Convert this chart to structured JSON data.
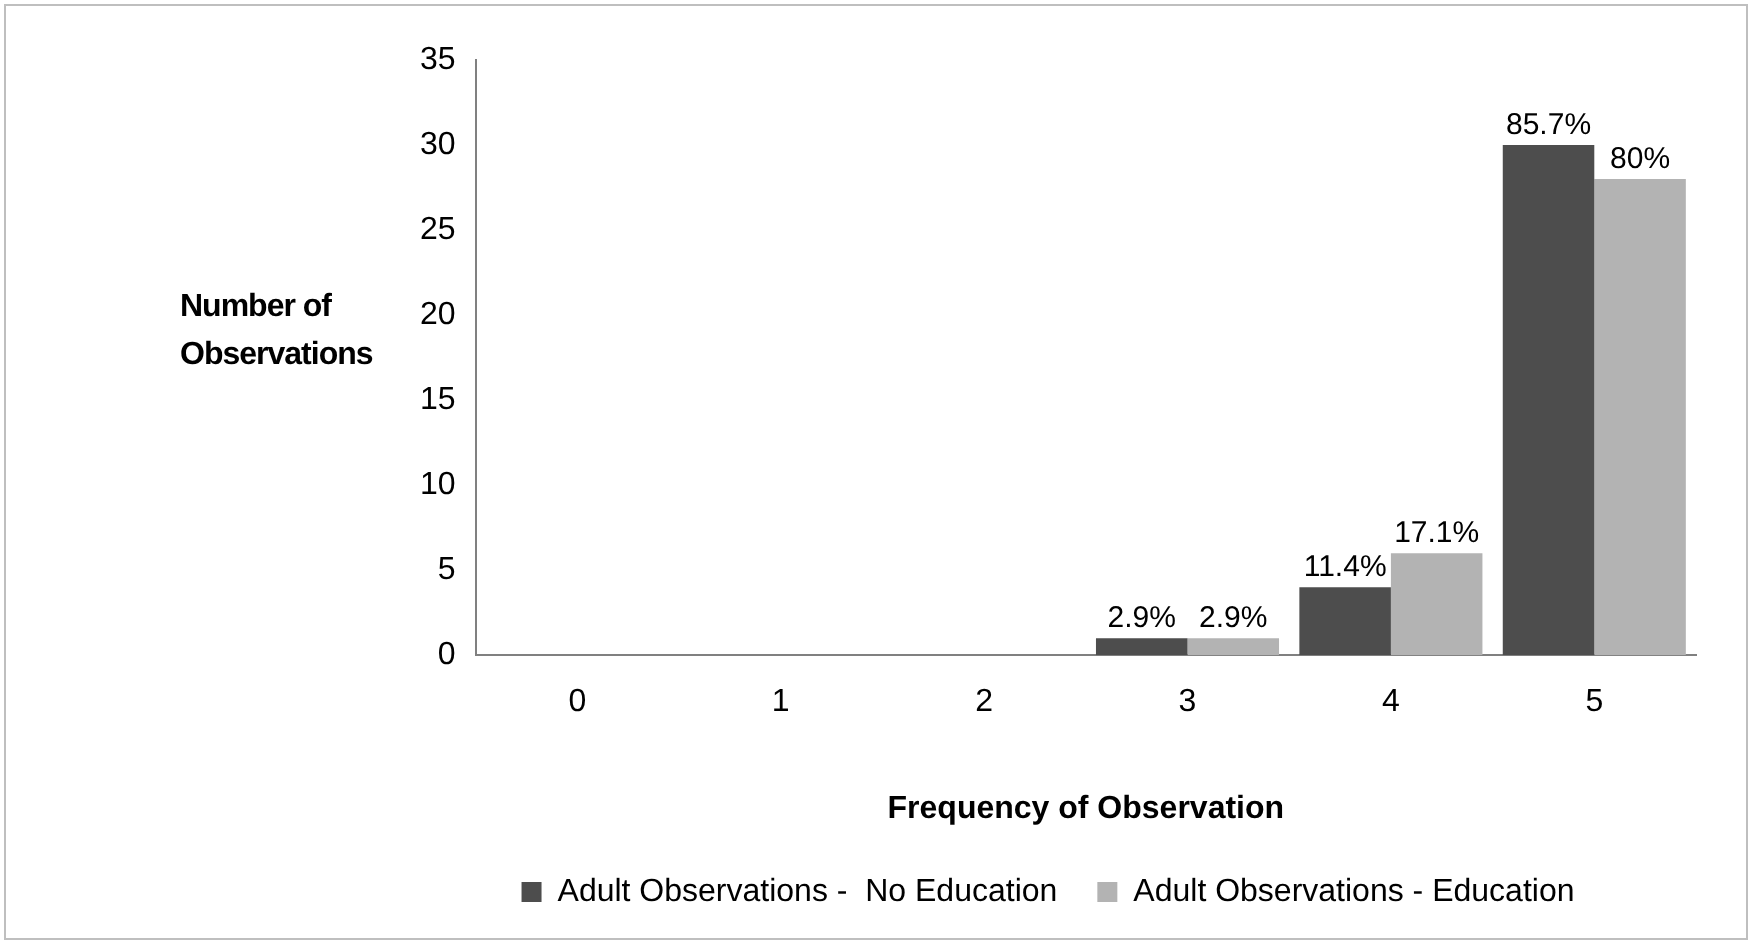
{
  "chart_data": {
    "type": "bar",
    "xlabel": "Frequency of Observation",
    "ylabel": "Number of Observations",
    "categories": [
      "0",
      "1",
      "2",
      "3",
      "4",
      "5"
    ],
    "series": [
      {
        "name": "Adult Observations -  No Education",
        "color": "#4d4d4d",
        "values": [
          0,
          0,
          0,
          1,
          4,
          30
        ]
      },
      {
        "name": "Adult Observations - Education",
        "color": "#b3b3b3",
        "values": [
          0,
          0,
          0,
          1,
          6,
          28
        ]
      }
    ],
    "annotations": [
      {
        "text": "2.9%",
        "x": "3",
        "y": 1
      },
      {
        "text": "2.9%",
        "x": "3",
        "y": 1
      },
      {
        "text": "11.4%",
        "x": "4",
        "y": 4
      },
      {
        "text": "17.1%",
        "x": "4",
        "y": 6
      },
      {
        "text": "85.7%",
        "x": "5",
        "y": 30
      },
      {
        "text": "80%",
        "x": "5",
        "y": 28
      }
    ],
    "ylim": [
      0,
      35
    ],
    "yticks": [
      0,
      5,
      10,
      15,
      20,
      25,
      30,
      35
    ],
    "grid": false,
    "legend": "bottom"
  }
}
